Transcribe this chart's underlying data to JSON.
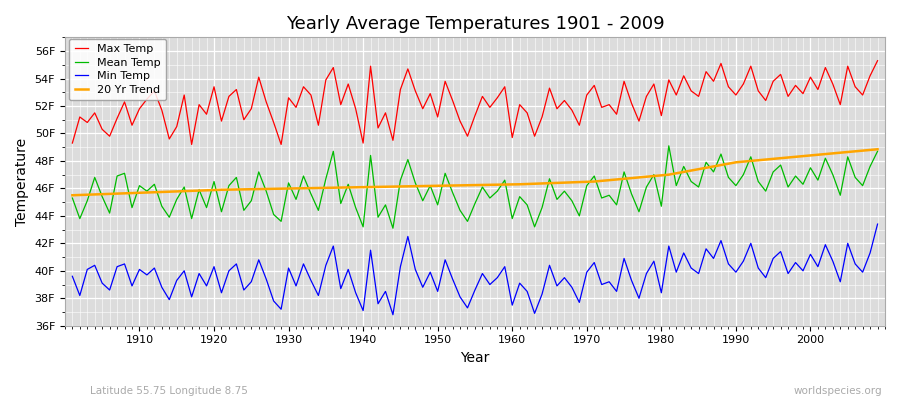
{
  "title": "Yearly Average Temperatures 1901 - 2009",
  "xlabel": "Year",
  "ylabel": "Temperature",
  "subtitle_left": "Latitude 55.75 Longitude 8.75",
  "subtitle_right": "worldspecies.org",
  "ylim": [
    36,
    57
  ],
  "yticks": [
    36,
    38,
    40,
    42,
    44,
    46,
    48,
    50,
    52,
    54,
    56
  ],
  "ytick_labels": [
    "36F",
    "38F",
    "40F",
    "42F",
    "44F",
    "46F",
    "48F",
    "50F",
    "52F",
    "54F",
    "56F"
  ],
  "start_year": 1901,
  "end_year": 2009,
  "colors": {
    "max_temp": "#ff0000",
    "mean_temp": "#00bb00",
    "min_temp": "#0000ff",
    "trend": "#ffa500",
    "fig_bg": "#ffffff",
    "plot_bg": "#dcdcdc",
    "grid": "#ffffff"
  },
  "legend_labels": [
    "Max Temp",
    "Mean Temp",
    "Min Temp",
    "20 Yr Trend"
  ],
  "max_temp": [
    49.3,
    51.2,
    50.8,
    51.5,
    50.3,
    49.8,
    51.1,
    52.3,
    50.6,
    51.8,
    52.5,
    53.1,
    51.7,
    49.6,
    50.5,
    52.8,
    49.2,
    52.1,
    51.4,
    53.4,
    50.9,
    52.7,
    53.2,
    51.0,
    51.8,
    54.1,
    52.3,
    50.8,
    49.2,
    52.6,
    51.9,
    53.4,
    52.8,
    50.6,
    53.9,
    54.8,
    52.1,
    53.6,
    51.8,
    49.3,
    54.9,
    50.4,
    51.5,
    49.5,
    53.2,
    54.7,
    53.1,
    51.8,
    52.9,
    51.2,
    53.8,
    52.4,
    50.9,
    49.8,
    51.3,
    52.7,
    51.9,
    52.6,
    53.4,
    49.7,
    52.1,
    51.5,
    49.8,
    51.2,
    53.3,
    51.8,
    52.4,
    51.7,
    50.6,
    52.8,
    53.5,
    51.9,
    52.1,
    51.4,
    53.8,
    52.2,
    50.9,
    52.7,
    53.6,
    51.3,
    53.9,
    52.8,
    54.2,
    53.1,
    52.7,
    54.5,
    53.8,
    55.1,
    53.4,
    52.8,
    53.6,
    54.9,
    53.1,
    52.4,
    53.8,
    54.3,
    52.7,
    53.5,
    52.9,
    54.1,
    53.2,
    54.8,
    53.6,
    52.1,
    54.9,
    53.4,
    52.8,
    54.2,
    55.3
  ],
  "mean_temp": [
    45.3,
    43.8,
    45.1,
    46.8,
    45.4,
    44.2,
    46.9,
    47.1,
    44.6,
    46.2,
    45.8,
    46.3,
    44.7,
    43.9,
    45.2,
    46.1,
    43.8,
    45.9,
    44.6,
    46.5,
    44.3,
    46.2,
    46.8,
    44.4,
    45.1,
    47.2,
    45.8,
    44.1,
    43.6,
    46.4,
    45.2,
    46.9,
    45.6,
    44.4,
    46.7,
    48.7,
    44.9,
    46.3,
    44.6,
    43.2,
    48.4,
    43.9,
    44.8,
    43.1,
    46.6,
    48.1,
    46.4,
    45.1,
    46.2,
    44.8,
    47.1,
    45.7,
    44.4,
    43.6,
    44.9,
    46.1,
    45.3,
    45.8,
    46.6,
    43.8,
    45.4,
    44.8,
    43.2,
    44.6,
    46.7,
    45.2,
    45.8,
    45.1,
    44.0,
    46.2,
    46.9,
    45.3,
    45.5,
    44.8,
    47.2,
    45.6,
    44.3,
    46.1,
    47.0,
    44.7,
    49.1,
    46.2,
    47.6,
    46.5,
    46.1,
    47.9,
    47.2,
    48.5,
    46.8,
    46.2,
    47.0,
    48.3,
    46.5,
    45.8,
    47.2,
    47.7,
    46.1,
    46.9,
    46.3,
    47.5,
    46.6,
    48.2,
    47.0,
    45.5,
    48.3,
    46.8,
    46.2,
    47.6,
    48.7
  ],
  "min_temp": [
    39.6,
    38.2,
    40.1,
    40.4,
    39.1,
    38.6,
    40.3,
    40.5,
    38.9,
    40.1,
    39.7,
    40.2,
    38.8,
    37.9,
    39.3,
    40.0,
    38.1,
    39.8,
    38.9,
    40.3,
    38.4,
    40.0,
    40.5,
    38.6,
    39.2,
    40.8,
    39.4,
    37.8,
    37.2,
    40.2,
    38.9,
    40.5,
    39.3,
    38.2,
    40.4,
    41.8,
    38.7,
    40.1,
    38.4,
    37.1,
    41.5,
    37.6,
    38.5,
    36.8,
    40.3,
    42.5,
    40.1,
    38.8,
    39.9,
    38.5,
    40.8,
    39.4,
    38.1,
    37.3,
    38.6,
    39.8,
    39.0,
    39.5,
    40.3,
    37.5,
    39.1,
    38.5,
    36.9,
    38.3,
    40.4,
    38.9,
    39.5,
    38.8,
    37.7,
    39.9,
    40.6,
    39.0,
    39.2,
    38.5,
    40.9,
    39.3,
    38.0,
    39.8,
    40.7,
    38.4,
    41.8,
    39.9,
    41.3,
    40.2,
    39.8,
    41.6,
    40.9,
    42.2,
    40.5,
    39.9,
    40.7,
    42.0,
    40.2,
    39.5,
    40.9,
    41.4,
    39.8,
    40.6,
    40.0,
    41.2,
    40.3,
    41.9,
    40.7,
    39.2,
    42.0,
    40.5,
    39.9,
    41.3,
    43.4
  ],
  "trend": [
    45.5,
    45.52,
    45.54,
    45.56,
    45.58,
    45.6,
    45.62,
    45.64,
    45.66,
    45.68,
    45.7,
    45.72,
    45.74,
    45.76,
    45.78,
    45.8,
    45.82,
    45.84,
    45.86,
    45.88,
    45.9,
    45.91,
    45.92,
    45.93,
    45.94,
    45.95,
    45.96,
    45.97,
    45.98,
    45.99,
    46.0,
    46.01,
    46.02,
    46.03,
    46.04,
    46.05,
    46.06,
    46.07,
    46.08,
    46.09,
    46.1,
    46.11,
    46.12,
    46.13,
    46.14,
    46.15,
    46.16,
    46.17,
    46.18,
    46.19,
    46.2,
    46.21,
    46.22,
    46.23,
    46.24,
    46.25,
    46.26,
    46.27,
    46.28,
    46.29,
    46.3,
    46.32,
    46.34,
    46.36,
    46.38,
    46.4,
    46.42,
    46.44,
    46.46,
    46.48,
    46.5,
    46.55,
    46.6,
    46.65,
    46.7,
    46.75,
    46.8,
    46.85,
    46.9,
    46.95,
    47.0,
    47.1,
    47.2,
    47.3,
    47.4,
    47.5,
    47.6,
    47.7,
    47.8,
    47.9,
    47.95,
    48.0,
    48.05,
    48.1,
    48.15,
    48.2,
    48.25,
    48.3,
    48.35,
    48.4,
    48.45,
    48.5,
    48.55,
    48.6,
    48.65,
    48.7,
    48.75,
    48.8,
    48.85
  ]
}
